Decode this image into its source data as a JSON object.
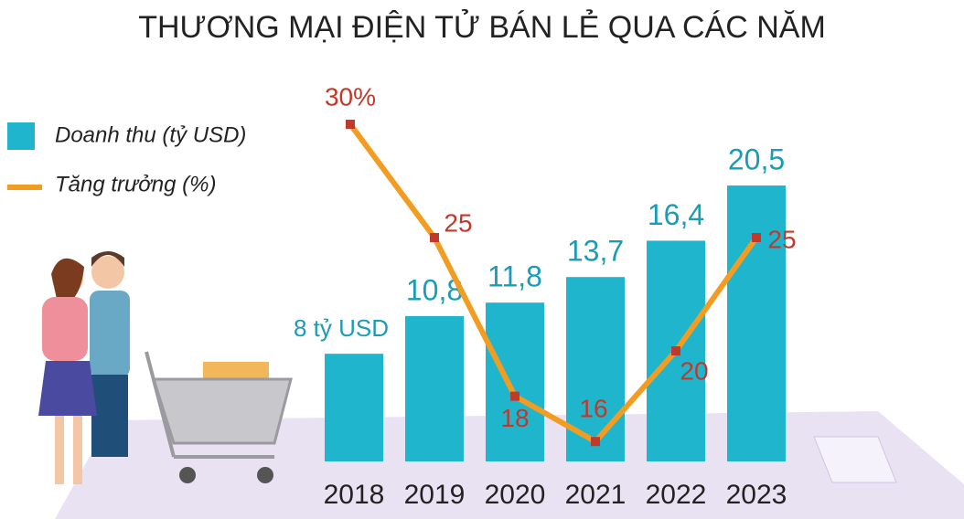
{
  "chart_data": {
    "type": "bar",
    "title": "THƯƠNG MẠI ĐIỆN TỬ BÁN LẺ QUA CÁC NĂM",
    "categories": [
      "2018",
      "2019",
      "2020",
      "2021",
      "2022",
      "2023"
    ],
    "series": [
      {
        "name": "Doanh thu (tỷ USD)",
        "type": "bar",
        "color": "#1fb6cd",
        "label_color": "#1b9cb6",
        "values": [
          8,
          10.8,
          11.8,
          13.7,
          16.4,
          20.5
        ],
        "value_labels": [
          "8 tỷ USD",
          "10,8",
          "11,8",
          "13,7",
          "16,4",
          "20,5"
        ]
      },
      {
        "name": "Tăng trưởng (%)",
        "type": "line",
        "axis": "y2",
        "color": "#f39c22",
        "marker_color": "#c0392b",
        "label_color": "#c0392b",
        "values": [
          30,
          25,
          18,
          16,
          20,
          25
        ],
        "value_labels": [
          "30%",
          "25",
          "18",
          "16",
          "20",
          "25"
        ]
      }
    ]
  }
}
